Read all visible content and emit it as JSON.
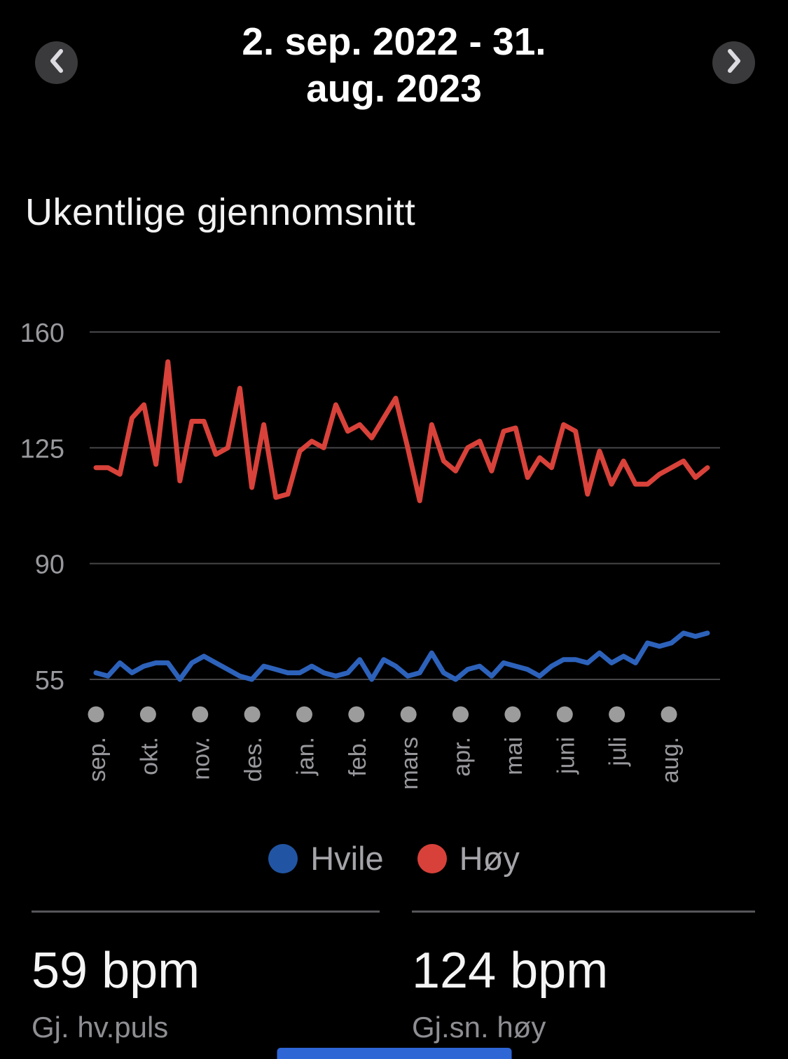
{
  "header": {
    "date_range": "2. sep. 2022 - 31. aug. 2023",
    "date_line1": "2. sep. 2022 - 31.",
    "date_line2": "aug. 2023",
    "prev_button": "chevron-left",
    "next_button": "chevron-right"
  },
  "section": {
    "title": "Ukentlige gjennomsnitt"
  },
  "chart_data": {
    "type": "line",
    "title": "Ukentlige gjennomsnitt",
    "x_unit": "week",
    "x_count": 52,
    "months": [
      "sep.",
      "okt.",
      "nov.",
      "des.",
      "jan.",
      "feb.",
      "mars",
      "apr.",
      "mai",
      "juni",
      "juli",
      "aug."
    ],
    "y_ticks": [
      160,
      125,
      90,
      55
    ],
    "y_unit": "bpm",
    "ylim": [
      48,
      168
    ],
    "grid": "horizontal",
    "legend_position": "bottom",
    "series": [
      {
        "name": "Hvile",
        "color": "#2d62bb",
        "values": [
          57,
          56,
          60,
          57,
          59,
          60,
          60,
          55,
          60,
          62,
          60,
          58,
          56,
          55,
          59,
          58,
          57,
          57,
          59,
          57,
          56,
          57,
          61,
          55,
          61,
          59,
          56,
          57,
          63,
          57,
          55,
          58,
          59,
          56,
          60,
          59,
          58,
          56,
          59,
          61,
          61,
          60,
          63,
          60,
          62,
          60,
          66,
          65,
          66,
          69,
          68,
          69
        ]
      },
      {
        "name": "Høy",
        "color": "#d8423a",
        "values": [
          119,
          119,
          117,
          134,
          138,
          120,
          151,
          115,
          133,
          133,
          123,
          125,
          143,
          113,
          132,
          110,
          111,
          124,
          127,
          125,
          138,
          130,
          132,
          128,
          134,
          140,
          125,
          109,
          132,
          121,
          118,
          125,
          127,
          118,
          130,
          131,
          116,
          122,
          119,
          132,
          130,
          111,
          124,
          114,
          121,
          114,
          114,
          117,
          119,
          121,
          116,
          119
        ]
      }
    ]
  },
  "legend": {
    "items": [
      {
        "label": "Hvile",
        "color": "#2155a3"
      },
      {
        "label": "Høy",
        "color": "#d8413a"
      }
    ]
  },
  "stats": [
    {
      "value": "59 bpm",
      "label": "Gj. hv.puls"
    },
    {
      "value": "124 bpm",
      "label": "Gj.sn. høy"
    }
  ],
  "colors": {
    "background": "#000000",
    "gridline": "#464649",
    "axis_label": "#98989d",
    "month_dot": "#9c9c9c",
    "bottom_bar": "#2e66d6"
  }
}
